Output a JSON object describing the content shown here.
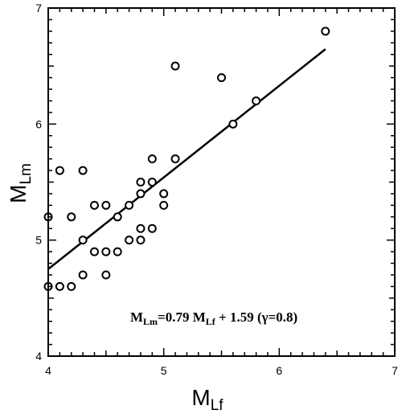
{
  "chart_data": {
    "type": "scatter",
    "xlabel": {
      "main": "M",
      "sub": "Lf"
    },
    "ylabel": {
      "main": "M",
      "sub": "Lm"
    },
    "xlim": [
      4,
      7
    ],
    "ylim": [
      4,
      7
    ],
    "xticks": [
      "4",
      "5",
      "6",
      "7"
    ],
    "yticks": [
      "4",
      "5",
      "6",
      "7"
    ],
    "grid": false,
    "points": [
      {
        "x": 4.0,
        "y": 5.2
      },
      {
        "x": 4.0,
        "y": 4.6
      },
      {
        "x": 4.1,
        "y": 5.6
      },
      {
        "x": 4.1,
        "y": 4.6
      },
      {
        "x": 4.2,
        "y": 5.2
      },
      {
        "x": 4.2,
        "y": 4.6
      },
      {
        "x": 4.3,
        "y": 5.6
      },
      {
        "x": 4.3,
        "y": 5.0
      },
      {
        "x": 4.3,
        "y": 4.7
      },
      {
        "x": 4.4,
        "y": 5.3
      },
      {
        "x": 4.4,
        "y": 4.9
      },
      {
        "x": 4.5,
        "y": 5.3
      },
      {
        "x": 4.5,
        "y": 4.9
      },
      {
        "x": 4.5,
        "y": 4.7
      },
      {
        "x": 4.6,
        "y": 5.2
      },
      {
        "x": 4.6,
        "y": 4.9
      },
      {
        "x": 4.7,
        "y": 5.3
      },
      {
        "x": 4.7,
        "y": 5.0
      },
      {
        "x": 4.8,
        "y": 5.5
      },
      {
        "x": 4.8,
        "y": 5.4
      },
      {
        "x": 4.8,
        "y": 5.1
      },
      {
        "x": 4.8,
        "y": 5.0
      },
      {
        "x": 4.9,
        "y": 5.7
      },
      {
        "x": 4.9,
        "y": 5.5
      },
      {
        "x": 4.9,
        "y": 5.1
      },
      {
        "x": 5.0,
        "y": 5.4
      },
      {
        "x": 5.0,
        "y": 5.3
      },
      {
        "x": 5.1,
        "y": 6.5
      },
      {
        "x": 5.1,
        "y": 5.7
      },
      {
        "x": 5.5,
        "y": 6.4
      },
      {
        "x": 5.6,
        "y": 6.0
      },
      {
        "x": 5.8,
        "y": 6.2
      },
      {
        "x": 6.4,
        "y": 6.8
      }
    ],
    "fit_line": {
      "slope": 0.79,
      "intercept": 1.59,
      "x_range": [
        4.0,
        6.4
      ]
    },
    "annotation": {
      "parts": [
        {
          "text": "M",
          "sub": false
        },
        {
          "text": "Lm",
          "sub": true
        },
        {
          "text": "=0.79 M",
          "sub": false
        },
        {
          "text": "Lf",
          "sub": true
        },
        {
          "text": " + 1.59  (γ=0.8)",
          "sub": false
        }
      ]
    }
  }
}
